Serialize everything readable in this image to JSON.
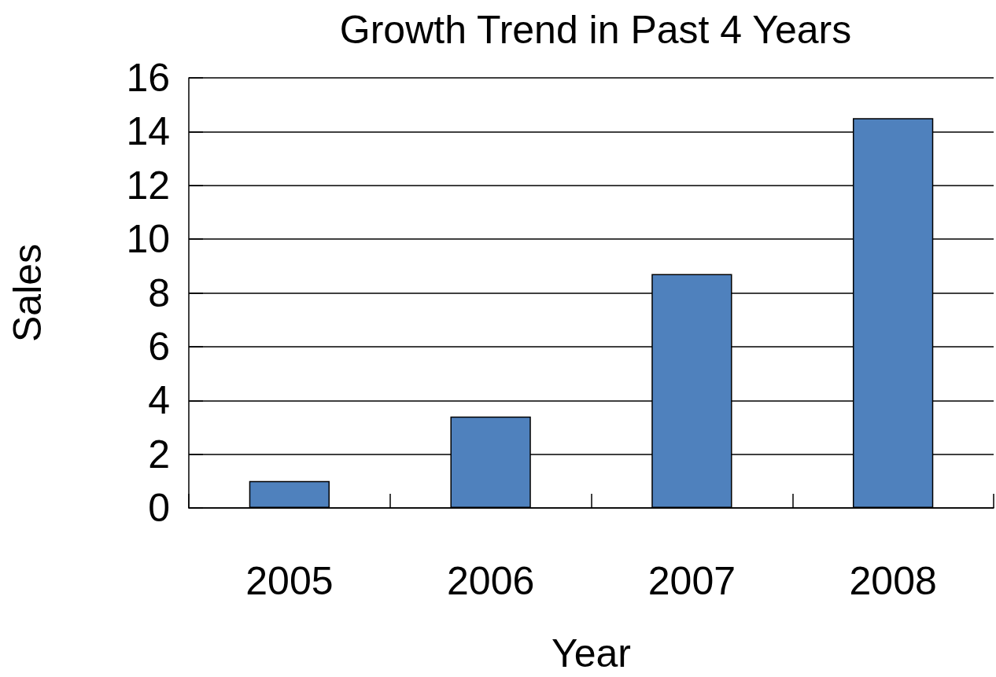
{
  "chart_data": {
    "type": "bar",
    "title": "Growth Trend in Past 4 Years",
    "xlabel": "Year",
    "ylabel": "Sales",
    "categories": [
      "2005",
      "2006",
      "2007",
      "2008"
    ],
    "values": [
      1,
      3.4,
      8.7,
      14.5
    ],
    "color": "#4f81bd",
    "ylim": [
      0,
      16
    ],
    "yticks": [
      0,
      2,
      4,
      6,
      8,
      10,
      12,
      14,
      16
    ],
    "grid": "y"
  }
}
